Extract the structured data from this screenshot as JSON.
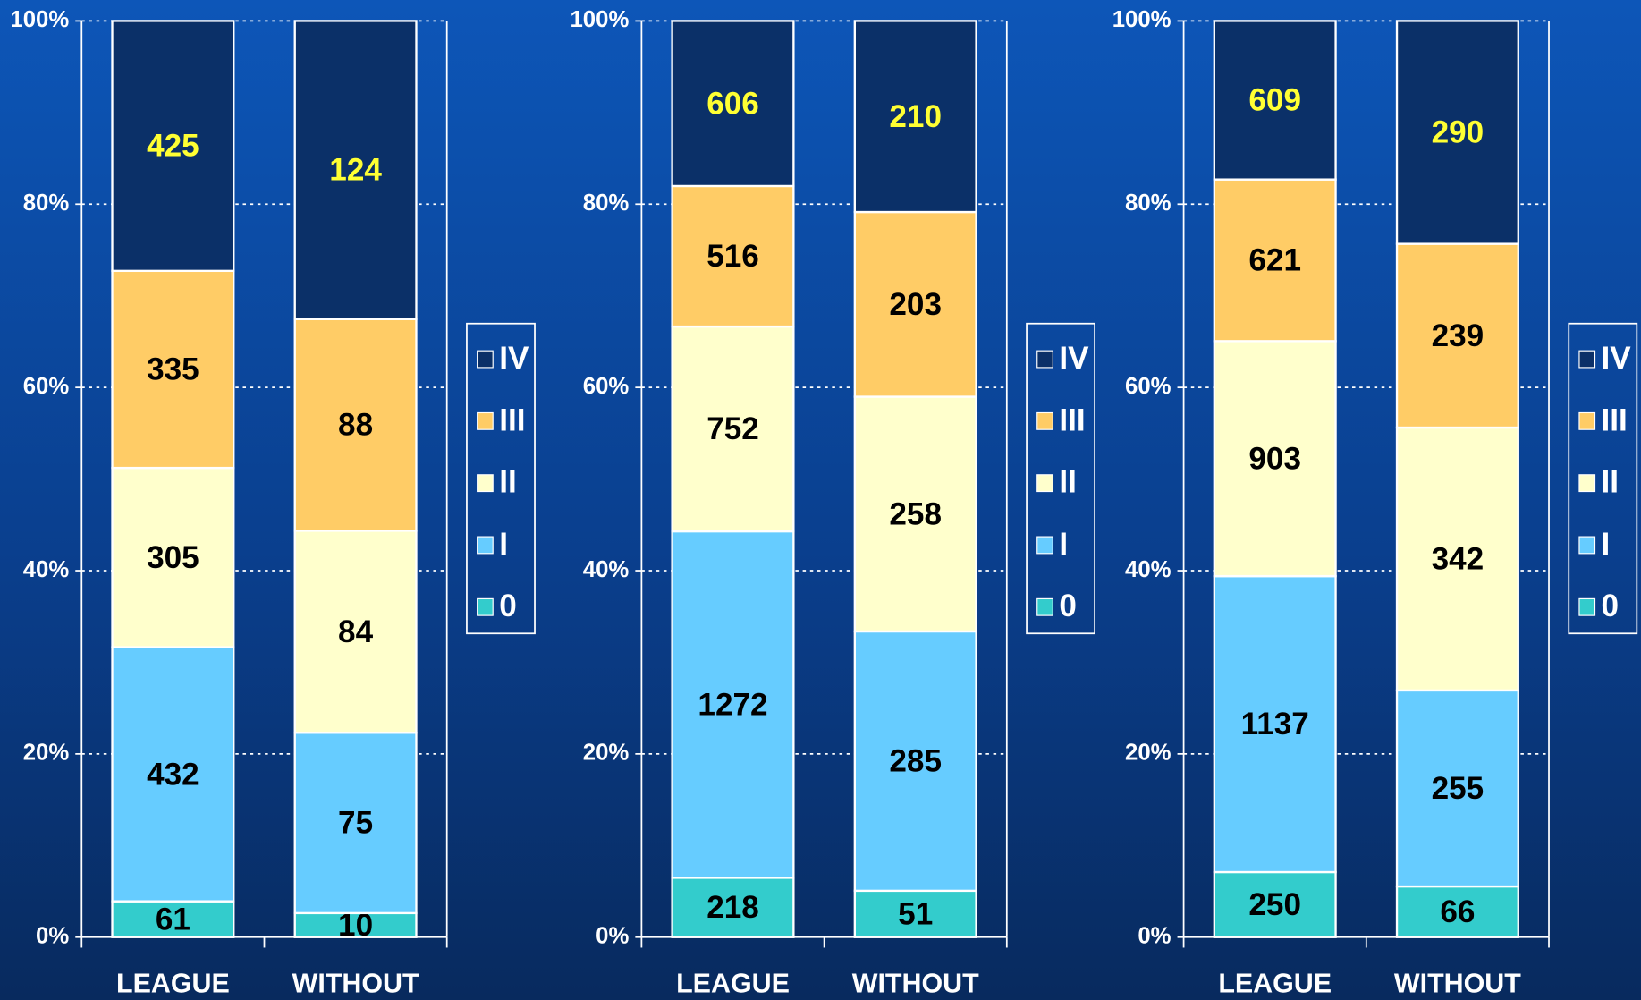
{
  "chart_data": [
    {
      "type": "bar",
      "stacking": "percent",
      "categories": [
        "LEAGUE",
        "WITHOUT"
      ],
      "series": [
        {
          "name": "0",
          "color": "#33cccc",
          "label_color": "#000000",
          "values": [
            61,
            10
          ]
        },
        {
          "name": "I",
          "color": "#66ccff",
          "label_color": "#000000",
          "values": [
            432,
            75
          ]
        },
        {
          "name": "II",
          "color": "#ffffcc",
          "label_color": "#000000",
          "values": [
            305,
            84
          ]
        },
        {
          "name": "III",
          "color": "#ffcc66",
          "label_color": "#000000",
          "values": [
            335,
            88
          ]
        },
        {
          "name": "IV",
          "color": "#0b3068",
          "label_color": "#ffff33",
          "values": [
            425,
            124
          ]
        }
      ],
      "ylim": [
        0,
        100
      ],
      "yticks": [
        {
          "value": 0,
          "label": "0%"
        },
        {
          "value": 20,
          "label": "20%"
        },
        {
          "value": 40,
          "label": "40%"
        },
        {
          "value": 60,
          "label": "60%"
        },
        {
          "value": 80,
          "label": "80%"
        },
        {
          "value": 100,
          "label": "100%"
        }
      ],
      "grid": true,
      "legend": "right"
    },
    {
      "type": "bar",
      "stacking": "percent",
      "categories": [
        "LEAGUE",
        "WITHOUT"
      ],
      "series": [
        {
          "name": "0",
          "color": "#33cccc",
          "label_color": "#000000",
          "values": [
            218,
            51
          ]
        },
        {
          "name": "I",
          "color": "#66ccff",
          "label_color": "#000000",
          "values": [
            1272,
            285
          ]
        },
        {
          "name": "II",
          "color": "#ffffcc",
          "label_color": "#000000",
          "values": [
            752,
            258
          ]
        },
        {
          "name": "III",
          "color": "#ffcc66",
          "label_color": "#000000",
          "values": [
            516,
            203
          ]
        },
        {
          "name": "IV",
          "color": "#0b3068",
          "label_color": "#ffff33",
          "values": [
            606,
            210
          ]
        }
      ],
      "ylim": [
        0,
        100
      ],
      "yticks": [
        {
          "value": 0,
          "label": "0%"
        },
        {
          "value": 20,
          "label": "20%"
        },
        {
          "value": 40,
          "label": "40%"
        },
        {
          "value": 60,
          "label": "60%"
        },
        {
          "value": 80,
          "label": "80%"
        },
        {
          "value": 100,
          "label": "100%"
        }
      ],
      "grid": true,
      "legend": "right"
    },
    {
      "type": "bar",
      "stacking": "percent",
      "categories": [
        "LEAGUE",
        "WITHOUT"
      ],
      "series": [
        {
          "name": "0",
          "color": "#33cccc",
          "label_color": "#000000",
          "values": [
            250,
            66
          ]
        },
        {
          "name": "I",
          "color": "#66ccff",
          "label_color": "#000000",
          "values": [
            1137,
            255
          ]
        },
        {
          "name": "II",
          "color": "#ffffcc",
          "label_color": "#000000",
          "values": [
            903,
            342
          ]
        },
        {
          "name": "III",
          "color": "#ffcc66",
          "label_color": "#000000",
          "values": [
            621,
            239
          ]
        },
        {
          "name": "IV",
          "color": "#0b3068",
          "label_color": "#ffff33",
          "values": [
            609,
            290
          ]
        }
      ],
      "ylim": [
        0,
        100
      ],
      "yticks": [
        {
          "value": 0,
          "label": "0%"
        },
        {
          "value": 20,
          "label": "20%"
        },
        {
          "value": 40,
          "label": "40%"
        },
        {
          "value": 60,
          "label": "60%"
        },
        {
          "value": 80,
          "label": "80%"
        },
        {
          "value": 100,
          "label": "100%"
        }
      ],
      "grid": true,
      "legend": "right"
    }
  ]
}
